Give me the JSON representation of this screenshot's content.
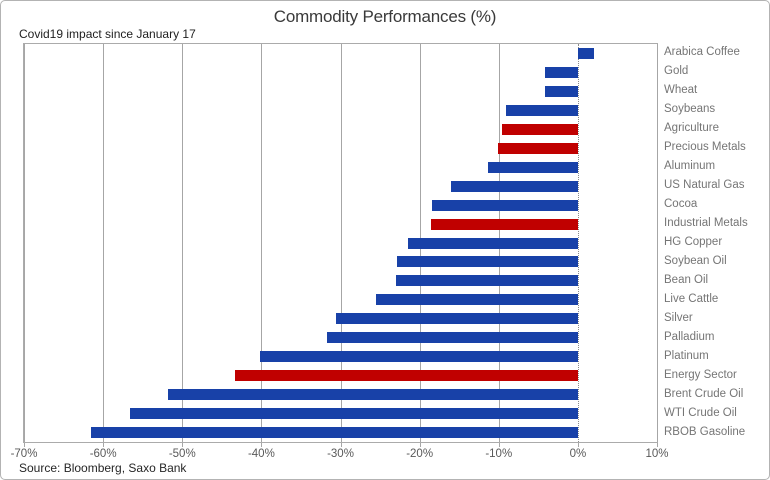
{
  "header": {
    "title": "Commodity Performances (%)",
    "subtitle": "Covid19 impact since January 17"
  },
  "footer": {
    "source": "Source: Bloomberg, Saxo Bank"
  },
  "colors": {
    "bar_blue": "#1841a8",
    "bar_red": "#c00000",
    "gridline": "#a6a6a6",
    "zero_line": "#8c8c8c",
    "category_label": "#757575",
    "tick_label": "#595959",
    "title_text": "#3a3a3a"
  },
  "chart_data": {
    "type": "bar",
    "orientation": "horizontal",
    "title": "Commodity Performances (%)",
    "subtitle": "Covid19 impact since January 17",
    "source": "Source: Bloomberg, Saxo Bank",
    "xlabel": "",
    "ylabel": "",
    "xlim": [
      -70,
      10
    ],
    "grid": true,
    "legend": false,
    "x_ticks": [
      -70,
      -60,
      -50,
      -40,
      -30,
      -20,
      -10,
      0,
      10
    ],
    "x_tick_labels": [
      "-70%",
      "-60%",
      "-50%",
      "-40%",
      "-30%",
      "-20%",
      "-10%",
      "0%",
      "10%"
    ],
    "categories": [
      "Arabica Coffee",
      "Gold",
      "Wheat",
      "Soybeans",
      "Agriculture",
      "Precious Metals",
      "Aluminum",
      "US Natural Gas",
      "Cocoa",
      "Industrial Metals",
      "HG Copper",
      "Soybean Oil",
      "Bean Oil",
      "Live Cattle",
      "Silver",
      "Palladium",
      "Platinum",
      "Energy Sector",
      "Brent Crude Oil",
      "WTI Crude Oil",
      "RBOB Gasoline"
    ],
    "values": [
      2.0,
      -4.1,
      -4.2,
      -9.1,
      -9.6,
      -10.1,
      -11.3,
      -16.0,
      -18.4,
      -18.6,
      -21.5,
      -22.8,
      -23.0,
      -25.5,
      -30.6,
      -31.7,
      -40.2,
      -43.3,
      -51.8,
      -56.6,
      -61.5
    ],
    "bar_color_keys": [
      "blue",
      "blue",
      "blue",
      "blue",
      "red",
      "red",
      "blue",
      "blue",
      "blue",
      "red",
      "blue",
      "blue",
      "blue",
      "blue",
      "blue",
      "blue",
      "blue",
      "red",
      "blue",
      "blue",
      "blue"
    ]
  }
}
